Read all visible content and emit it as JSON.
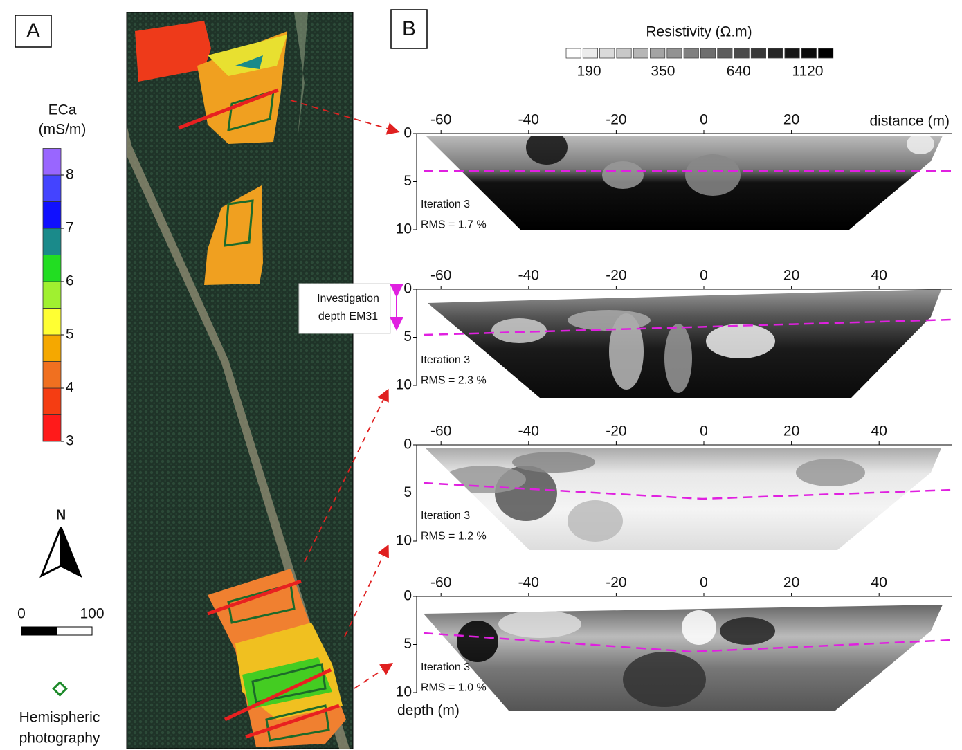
{
  "panel_a": {
    "label": "A",
    "legend_title": "ECa",
    "legend_unit": "(mS/m)",
    "legend_ticks": [
      3,
      4,
      5,
      6,
      7,
      8
    ],
    "legend_colors": [
      "#ff1a1a",
      "#f53d12",
      "#f07020",
      "#f5a800",
      "#ffff33",
      "#a0f030",
      "#22dd22",
      "#1a8a8a",
      "#1010ff",
      "#4444ff",
      "#9966ff"
    ],
    "north": "N",
    "scale_ticks": [
      0,
      100
    ],
    "symbol_label_lines": [
      "Hemispheric",
      "photography"
    ]
  },
  "panel_b": {
    "label": "B",
    "resistivity_title": "Resistivity (Ω.m)",
    "resistivity_ticks": [
      190,
      350,
      640,
      1120
    ],
    "resistivity_colors": [
      "#ffffff",
      "#ececec",
      "#dadada",
      "#c8c8c8",
      "#b6b6b6",
      "#a4a4a4",
      "#929292",
      "#808080",
      "#6e6e6e",
      "#5c5c5c",
      "#4a4a4a",
      "#383838",
      "#262626",
      "#161616",
      "#0a0a0a",
      "#000000"
    ],
    "distance_label": "distance (m)",
    "depth_label": "depth (m)",
    "annotation_lines": [
      "Investigation",
      "depth EM31"
    ],
    "profiles": [
      {
        "xticks": [
          -60,
          -40,
          -20,
          0,
          20
        ],
        "yticks": [
          0,
          5,
          10
        ],
        "iteration": "Iteration 3",
        "rms": "RMS = 1.7 %"
      },
      {
        "xticks": [
          -60,
          -40,
          -20,
          0,
          20,
          40
        ],
        "yticks": [
          0,
          5,
          10
        ],
        "iteration": "Iteration 3",
        "rms": "RMS = 2.3 %"
      },
      {
        "xticks": [
          -60,
          -40,
          -20,
          0,
          20,
          40
        ],
        "yticks": [
          0,
          5,
          10
        ],
        "iteration": "Iteration 3",
        "rms": "RMS = 1.2 %"
      },
      {
        "xticks": [
          -60,
          -40,
          -20,
          0,
          20,
          40
        ],
        "yticks": [
          0,
          5,
          10
        ],
        "iteration": "Iteration 3",
        "rms": "RMS = 1.0 %"
      }
    ]
  }
}
